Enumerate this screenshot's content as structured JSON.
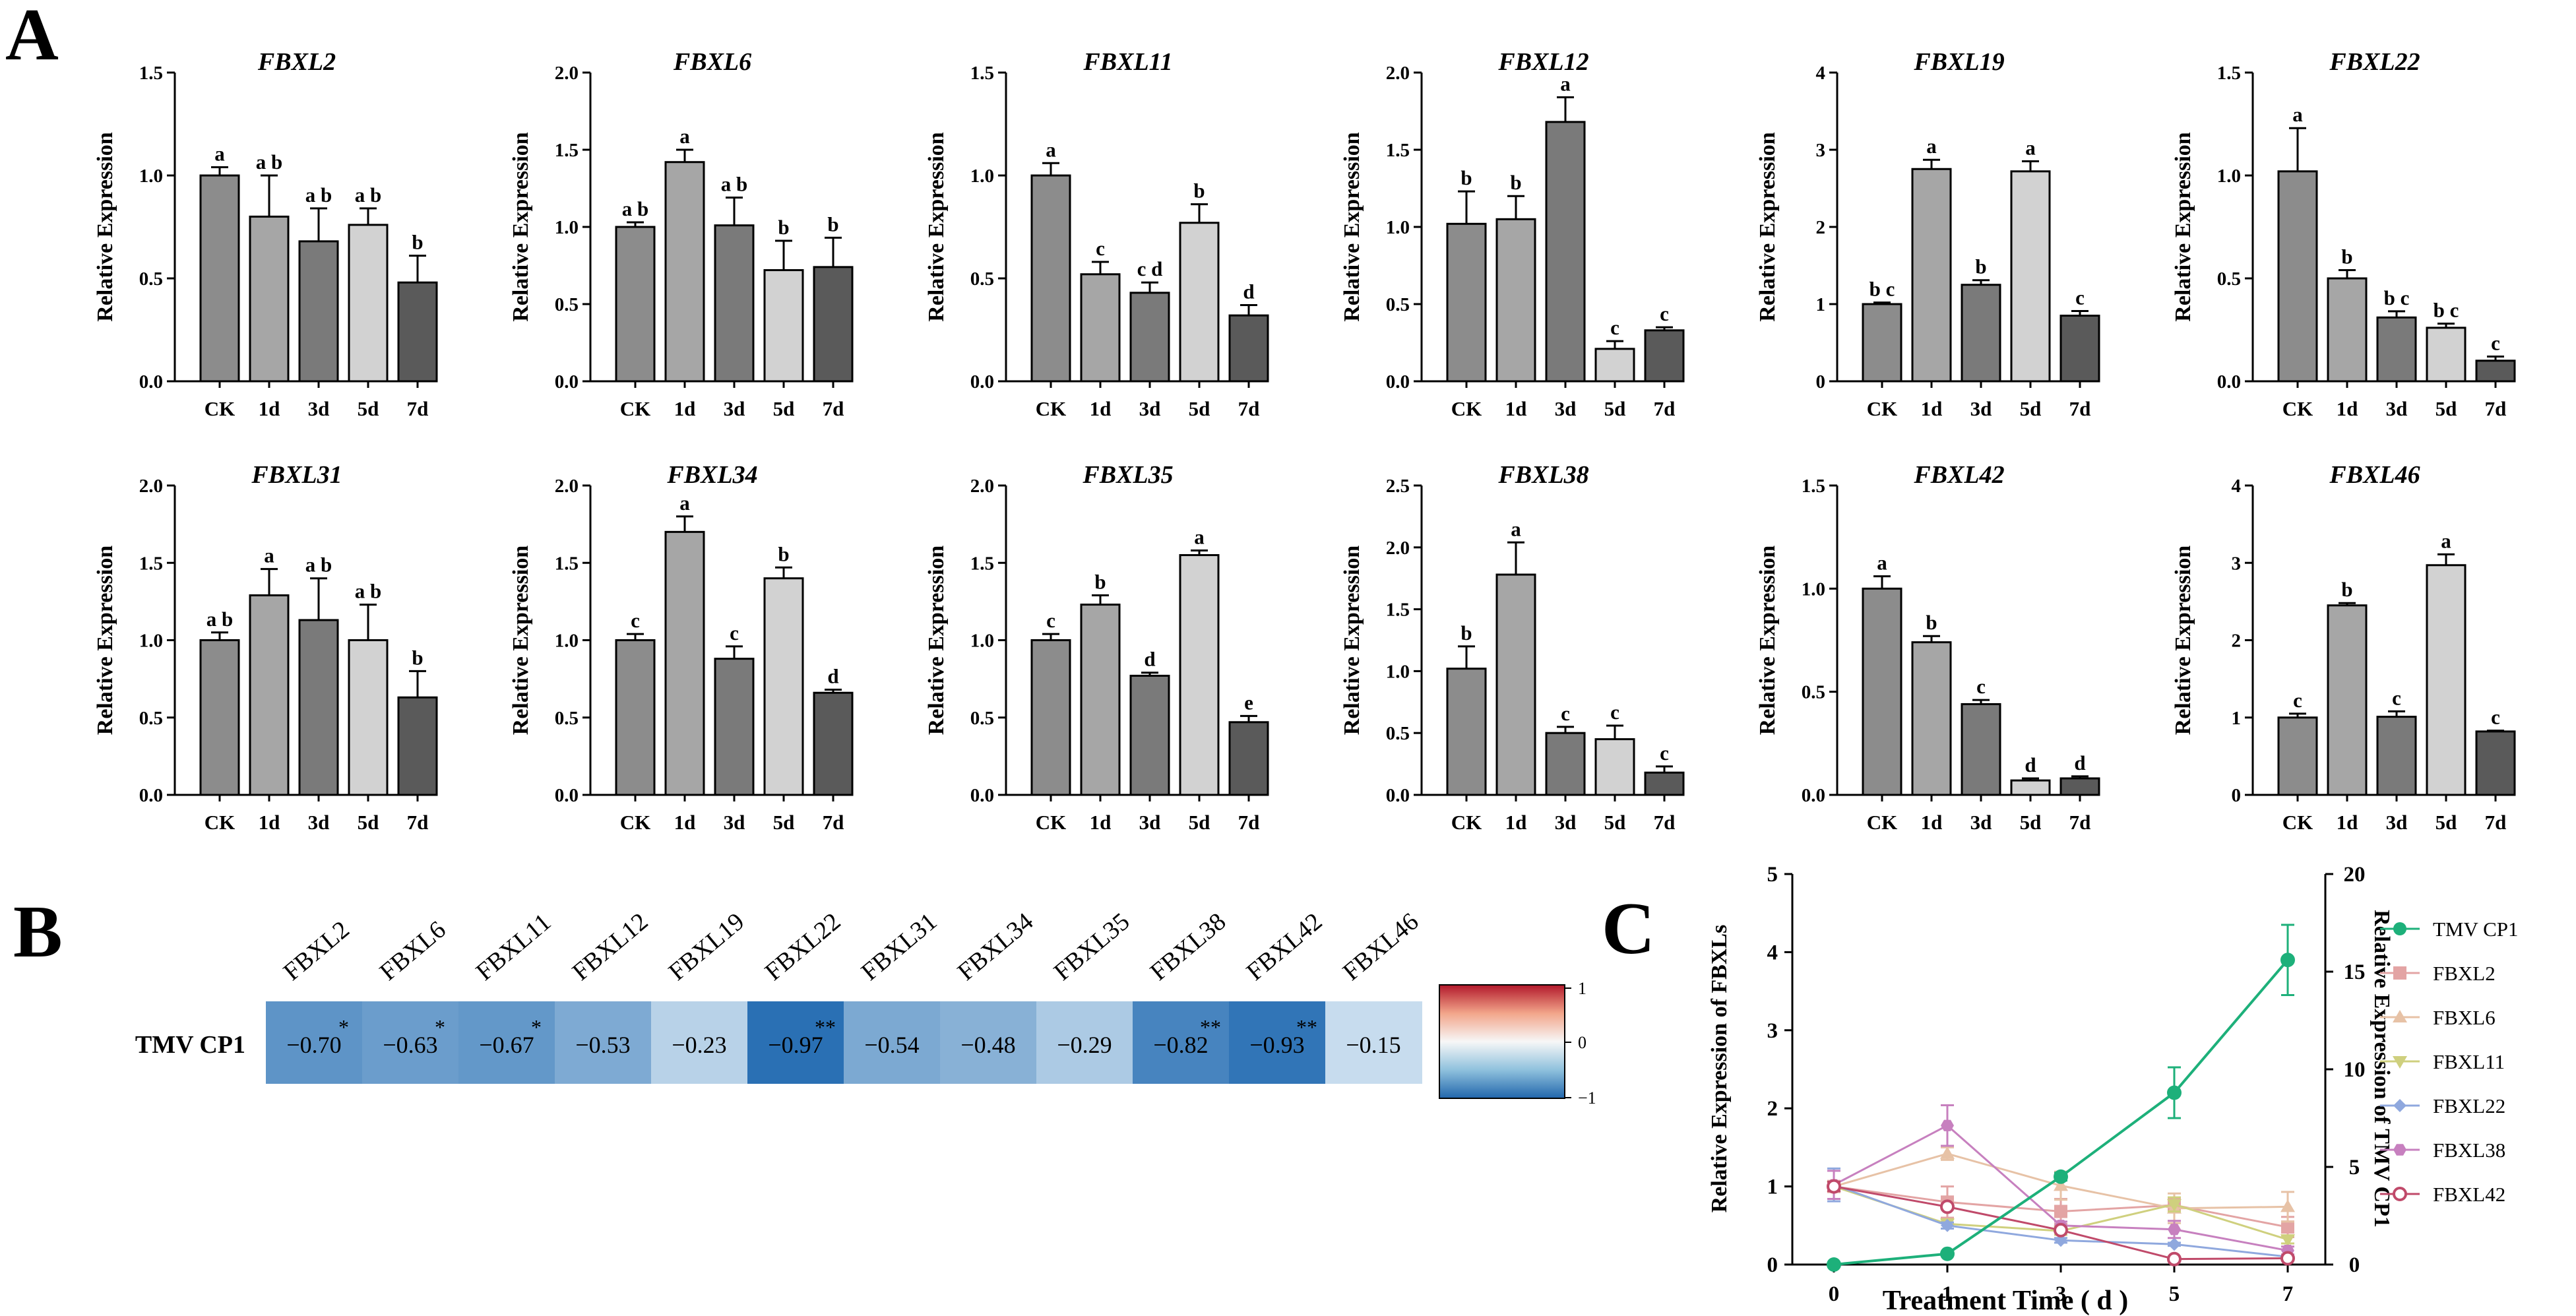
{
  "panels": {
    "a": "A",
    "b": "B",
    "c": "C"
  },
  "categories": [
    "CK",
    "1d",
    "3d",
    "5d",
    "7d"
  ],
  "bar_colors": [
    "#8c8c8c",
    "#a6a6a6",
    "#7a7a7a",
    "#d2d2d2",
    "#5a5a5a"
  ],
  "chart_data": [
    {
      "type": "bar",
      "title": "FBXL2",
      "ylabel": "Relative Expression",
      "categories": [
        "CK",
        "1d",
        "3d",
        "5d",
        "7d"
      ],
      "values": [
        1.0,
        0.8,
        0.68,
        0.76,
        0.48
      ],
      "errors": [
        0.04,
        0.2,
        0.16,
        0.08,
        0.13
      ],
      "letters": [
        "a",
        "a b",
        "a b",
        "a b",
        "b"
      ],
      "ylim": [
        0,
        1.5
      ],
      "yticks": [
        "0.0",
        "0.5",
        "1.0",
        "1.5"
      ]
    },
    {
      "type": "bar",
      "title": "FBXL6",
      "ylabel": "Relative Expression",
      "categories": [
        "CK",
        "1d",
        "3d",
        "5d",
        "7d"
      ],
      "values": [
        1.0,
        1.42,
        1.01,
        0.72,
        0.74
      ],
      "errors": [
        0.03,
        0.08,
        0.18,
        0.19,
        0.19
      ],
      "letters": [
        "a b",
        "a",
        "a b",
        "b",
        "b"
      ],
      "ylim": [
        0,
        2.0
      ],
      "yticks": [
        "0.0",
        "0.5",
        "1.0",
        "1.5",
        "2.0"
      ]
    },
    {
      "type": "bar",
      "title": "FBXL11",
      "ylabel": "Relative Expression",
      "categories": [
        "CK",
        "1d",
        "3d",
        "5d",
        "7d"
      ],
      "values": [
        1.0,
        0.52,
        0.43,
        0.77,
        0.32
      ],
      "errors": [
        0.06,
        0.06,
        0.05,
        0.09,
        0.05
      ],
      "letters": [
        "a",
        "c",
        "c d",
        "b",
        "d"
      ],
      "ylim": [
        0,
        1.5
      ],
      "yticks": [
        "0.0",
        "0.5",
        "1.0",
        "1.5"
      ]
    },
    {
      "type": "bar",
      "title": "FBXL12",
      "ylabel": "Relative Expression",
      "categories": [
        "CK",
        "1d",
        "3d",
        "5d",
        "7d"
      ],
      "values": [
        1.02,
        1.05,
        1.68,
        0.21,
        0.33
      ],
      "errors": [
        0.21,
        0.15,
        0.16,
        0.05,
        0.02
      ],
      "letters": [
        "b",
        "b",
        "a",
        "c",
        "c"
      ],
      "ylim": [
        0,
        2.0
      ],
      "yticks": [
        "0.0",
        "0.5",
        "1.0",
        "1.5",
        "2.0"
      ]
    },
    {
      "type": "bar",
      "title": "FBXL19",
      "ylabel": "Relative Expression",
      "categories": [
        "CK",
        "1d",
        "3d",
        "5d",
        "7d"
      ],
      "values": [
        1.0,
        2.75,
        1.25,
        2.72,
        0.85
      ],
      "errors": [
        0.02,
        0.12,
        0.06,
        0.13,
        0.06
      ],
      "letters": [
        "b c",
        "a",
        "b",
        "a",
        "c"
      ],
      "ylim": [
        0,
        4
      ],
      "yticks": [
        "0",
        "1",
        "2",
        "3",
        "4"
      ]
    },
    {
      "type": "bar",
      "title": "FBXL22",
      "ylabel": "Relative Expression",
      "categories": [
        "CK",
        "1d",
        "3d",
        "5d",
        "7d"
      ],
      "values": [
        1.02,
        0.5,
        0.31,
        0.26,
        0.1
      ],
      "errors": [
        0.21,
        0.04,
        0.03,
        0.02,
        0.02
      ],
      "letters": [
        "a",
        "b",
        "b c",
        "b c",
        "c"
      ],
      "ylim": [
        0,
        1.5
      ],
      "yticks": [
        "0.0",
        "0.5",
        "1.0",
        "1.5"
      ]
    },
    {
      "type": "bar",
      "title": "FBXL31",
      "ylabel": "Relative Expression",
      "categories": [
        "CK",
        "1d",
        "3d",
        "5d",
        "7d"
      ],
      "values": [
        1.0,
        1.29,
        1.13,
        1.0,
        0.63
      ],
      "errors": [
        0.05,
        0.17,
        0.27,
        0.23,
        0.17
      ],
      "letters": [
        "a b",
        "a",
        "a b",
        "a b",
        "b"
      ],
      "ylim": [
        0,
        2.0
      ],
      "yticks": [
        "0.0",
        "0.5",
        "1.0",
        "1.5",
        "2.0"
      ]
    },
    {
      "type": "bar",
      "title": "FBXL34",
      "ylabel": "Relative Expression",
      "categories": [
        "CK",
        "1d",
        "3d",
        "5d",
        "7d"
      ],
      "values": [
        1.0,
        1.7,
        0.88,
        1.4,
        0.66
      ],
      "errors": [
        0.04,
        0.1,
        0.08,
        0.07,
        0.02
      ],
      "letters": [
        "c",
        "a",
        "c",
        "b",
        "d"
      ],
      "ylim": [
        0,
        2.0
      ],
      "yticks": [
        "0.0",
        "0.5",
        "1.0",
        "1.5",
        "2.0"
      ]
    },
    {
      "type": "bar",
      "title": "FBXL35",
      "ylabel": "Relative Expression",
      "categories": [
        "CK",
        "1d",
        "3d",
        "5d",
        "7d"
      ],
      "values": [
        1.0,
        1.23,
        0.77,
        1.55,
        0.47
      ],
      "errors": [
        0.04,
        0.06,
        0.02,
        0.03,
        0.04
      ],
      "letters": [
        "c",
        "b",
        "d",
        "a",
        "e"
      ],
      "ylim": [
        0,
        2.0
      ],
      "yticks": [
        "0.0",
        "0.5",
        "1.0",
        "1.5",
        "2.0"
      ]
    },
    {
      "type": "bar",
      "title": "FBXL38",
      "ylabel": "Relative Expression",
      "categories": [
        "CK",
        "1d",
        "3d",
        "5d",
        "7d"
      ],
      "values": [
        1.02,
        1.78,
        0.5,
        0.45,
        0.18
      ],
      "errors": [
        0.18,
        0.26,
        0.05,
        0.11,
        0.05
      ],
      "letters": [
        "b",
        "a",
        "c",
        "c",
        "c"
      ],
      "ylim": [
        0,
        2.5
      ],
      "yticks": [
        "0.0",
        "0.5",
        "1.0",
        "1.5",
        "2.0",
        "2.5"
      ]
    },
    {
      "type": "bar",
      "title": "FBXL42",
      "ylabel": "Relative Expression",
      "categories": [
        "CK",
        "1d",
        "3d",
        "5d",
        "7d"
      ],
      "values": [
        1.0,
        0.74,
        0.44,
        0.07,
        0.08
      ],
      "errors": [
        0.06,
        0.03,
        0.02,
        0.01,
        0.01
      ],
      "letters": [
        "a",
        "b",
        "c",
        "d",
        "d"
      ],
      "ylim": [
        0,
        1.5
      ],
      "yticks": [
        "0.0",
        "0.5",
        "1.0",
        "1.5"
      ]
    },
    {
      "type": "bar",
      "title": "FBXL46",
      "ylabel": "Relative Expression",
      "categories": [
        "CK",
        "1d",
        "3d",
        "5d",
        "7d"
      ],
      "values": [
        1.0,
        2.45,
        1.01,
        2.97,
        0.82
      ],
      "errors": [
        0.05,
        0.03,
        0.07,
        0.14,
        0.01
      ],
      "letters": [
        "c",
        "b",
        "c",
        "a",
        "c"
      ],
      "ylim": [
        0,
        4
      ],
      "yticks": [
        "0",
        "1",
        "2",
        "3",
        "4"
      ]
    },
    {
      "type": "heatmap",
      "row_label": "TMV CP1",
      "columns": [
        "FBXL2",
        "FBXL6",
        "FBXL11",
        "FBXL12",
        "FBXL19",
        "FBXL22",
        "FBXL31",
        "FBXL34",
        "FBXL35",
        "FBXL38",
        "FBXL42",
        "FBXL46"
      ],
      "values": [
        -0.7,
        -0.63,
        -0.67,
        -0.53,
        -0.23,
        -0.97,
        -0.54,
        -0.48,
        -0.29,
        -0.82,
        -0.93,
        -0.15
      ],
      "labels": [
        "−0.70",
        "−0.63",
        "−0.67",
        "−0.53",
        "−0.23",
        "−0.97",
        "−0.54",
        "−0.48",
        "−0.29",
        "−0.82",
        "−0.93",
        "−0.15"
      ],
      "significance": [
        "*",
        "*",
        "*",
        "",
        "",
        "**",
        "",
        "",
        "",
        "**",
        "**",
        ""
      ],
      "colorbar": {
        "range": [
          -1,
          1
        ],
        "ticks": [
          "1",
          "0",
          "−1"
        ]
      }
    },
    {
      "type": "line",
      "x": [
        0,
        1,
        3,
        5,
        7
      ],
      "xticks": [
        "0",
        "1",
        "3",
        "5",
        "7"
      ],
      "xlabel": "Treatment Time ( d )",
      "ylabel": "Relative Expression of FBXLs",
      "y2label": "Relative Expression of TMV CP1",
      "ylim": [
        0,
        5
      ],
      "yticks": [
        "0",
        "1",
        "2",
        "3",
        "4",
        "5"
      ],
      "y2lim": [
        0,
        20
      ],
      "y2ticks": [
        "0",
        "5",
        "10",
        "15",
        "20"
      ],
      "series": [
        {
          "name": "TMV CP1",
          "axis": "right",
          "color": "#1db07a",
          "marker": "circle",
          "values": [
            0,
            0.55,
            4.5,
            8.8,
            15.6
          ],
          "errors": [
            0,
            0.1,
            0.2,
            1.3,
            1.8
          ]
        },
        {
          "name": "FBXL2",
          "axis": "left",
          "color": "#e3a4a4",
          "marker": "square",
          "values": [
            1.0,
            0.8,
            0.68,
            0.76,
            0.48
          ],
          "errors": [
            0.04,
            0.2,
            0.16,
            0.08,
            0.13
          ]
        },
        {
          "name": "FBXL6",
          "axis": "left",
          "color": "#e7c2a6",
          "marker": "triangle-up",
          "values": [
            1.0,
            1.42,
            1.01,
            0.72,
            0.74
          ],
          "errors": [
            0.03,
            0.08,
            0.18,
            0.19,
            0.19
          ]
        },
        {
          "name": "FBXL11",
          "axis": "left",
          "color": "#cfd07e",
          "marker": "triangle-down",
          "values": [
            1.0,
            0.52,
            0.43,
            0.77,
            0.32
          ],
          "errors": [
            0.06,
            0.06,
            0.05,
            0.09,
            0.05
          ]
        },
        {
          "name": "FBXL22",
          "axis": "left",
          "color": "#8fa8de",
          "marker": "diamond",
          "values": [
            1.02,
            0.5,
            0.31,
            0.26,
            0.1
          ],
          "errors": [
            0.21,
            0.04,
            0.03,
            0.02,
            0.02
          ]
        },
        {
          "name": "FBXL38",
          "axis": "left",
          "color": "#c780bf",
          "marker": "hexagon",
          "values": [
            1.02,
            1.78,
            0.5,
            0.45,
            0.18
          ],
          "errors": [
            0.18,
            0.26,
            0.05,
            0.11,
            0.05
          ]
        },
        {
          "name": "FBXL42",
          "axis": "left",
          "color": "#c04a6a",
          "marker": "open-circle",
          "values": [
            1.0,
            0.74,
            0.44,
            0.07,
            0.08
          ],
          "errors": [
            0.06,
            0.03,
            0.02,
            0.01,
            0.01
          ]
        }
      ]
    }
  ]
}
